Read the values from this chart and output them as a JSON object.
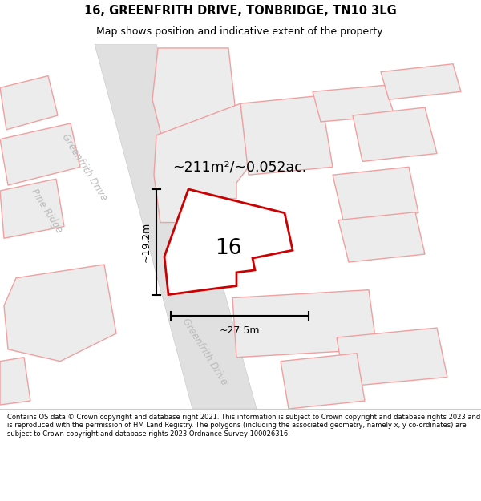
{
  "title_line1": "16, GREENFRITH DRIVE, TONBRIDGE, TN10 3LG",
  "title_line2": "Map shows position and indicative extent of the property.",
  "area_text": "~211m²/~0.052ac.",
  "label_number": "16",
  "dim_width": "~27.5m",
  "dim_height": "~19.2m",
  "street_greenfrith_top": "Greenfrith Drive",
  "street_greenfrith_bot": "Greenfrith Drive",
  "street_pine": "Pine Ridge",
  "footer_text": "Contains OS data © Crown copyright and database right 2021. This information is subject to Crown copyright and database rights 2023 and is reproduced with the permission of HM Land Registry. The polygons (including the associated geometry, namely x, y co-ordinates) are subject to Crown copyright and database rights 2023 Ordnance Survey 100026316.",
  "bg_color": "#ffffff",
  "road_fill": "#e0e0e0",
  "road_edge": "#cccccc",
  "block_fill": "#ececec",
  "block_edge": "#f0a0a0",
  "highlight_fill": "#ffffff",
  "highlight_edge": "#cc0000",
  "street_color": "#bbbbbb",
  "dim_color": "#000000",
  "text_color": "#000000"
}
